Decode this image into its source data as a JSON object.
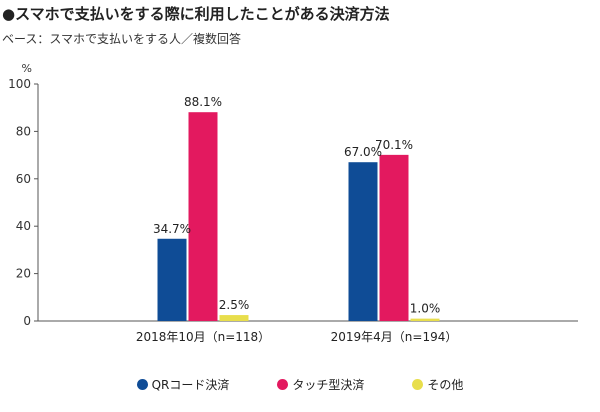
{
  "title": "●スマホで支払いをする際に利用したことがある決済方法",
  "subtitle": "ベース：スマホで支払いをする人／複数回答",
  "colors": {
    "qr": "#0f4c96",
    "touch": "#e3195f",
    "other": "#e8de4c"
  },
  "chart_data": {
    "type": "bar",
    "ylabel": "%",
    "ylim": [
      0,
      100
    ],
    "yticks": [
      0,
      20,
      40,
      60,
      80,
      100
    ],
    "grid": false,
    "legend_position": "bottom",
    "categories": [
      "2018年10月（n=118）",
      "2019年4月（n=194）"
    ],
    "series": [
      {
        "name": "QRコード決済",
        "values": [
          34.7,
          67.0
        ],
        "labels": [
          "34.7%",
          "67.0%"
        ]
      },
      {
        "name": "タッチ型決済",
        "values": [
          88.1,
          70.1
        ],
        "labels": [
          "88.1%",
          "70.1%"
        ]
      },
      {
        "name": "その他",
        "values": [
          2.5,
          1.0
        ],
        "labels": [
          "2.5%",
          "1.0%"
        ]
      }
    ]
  }
}
